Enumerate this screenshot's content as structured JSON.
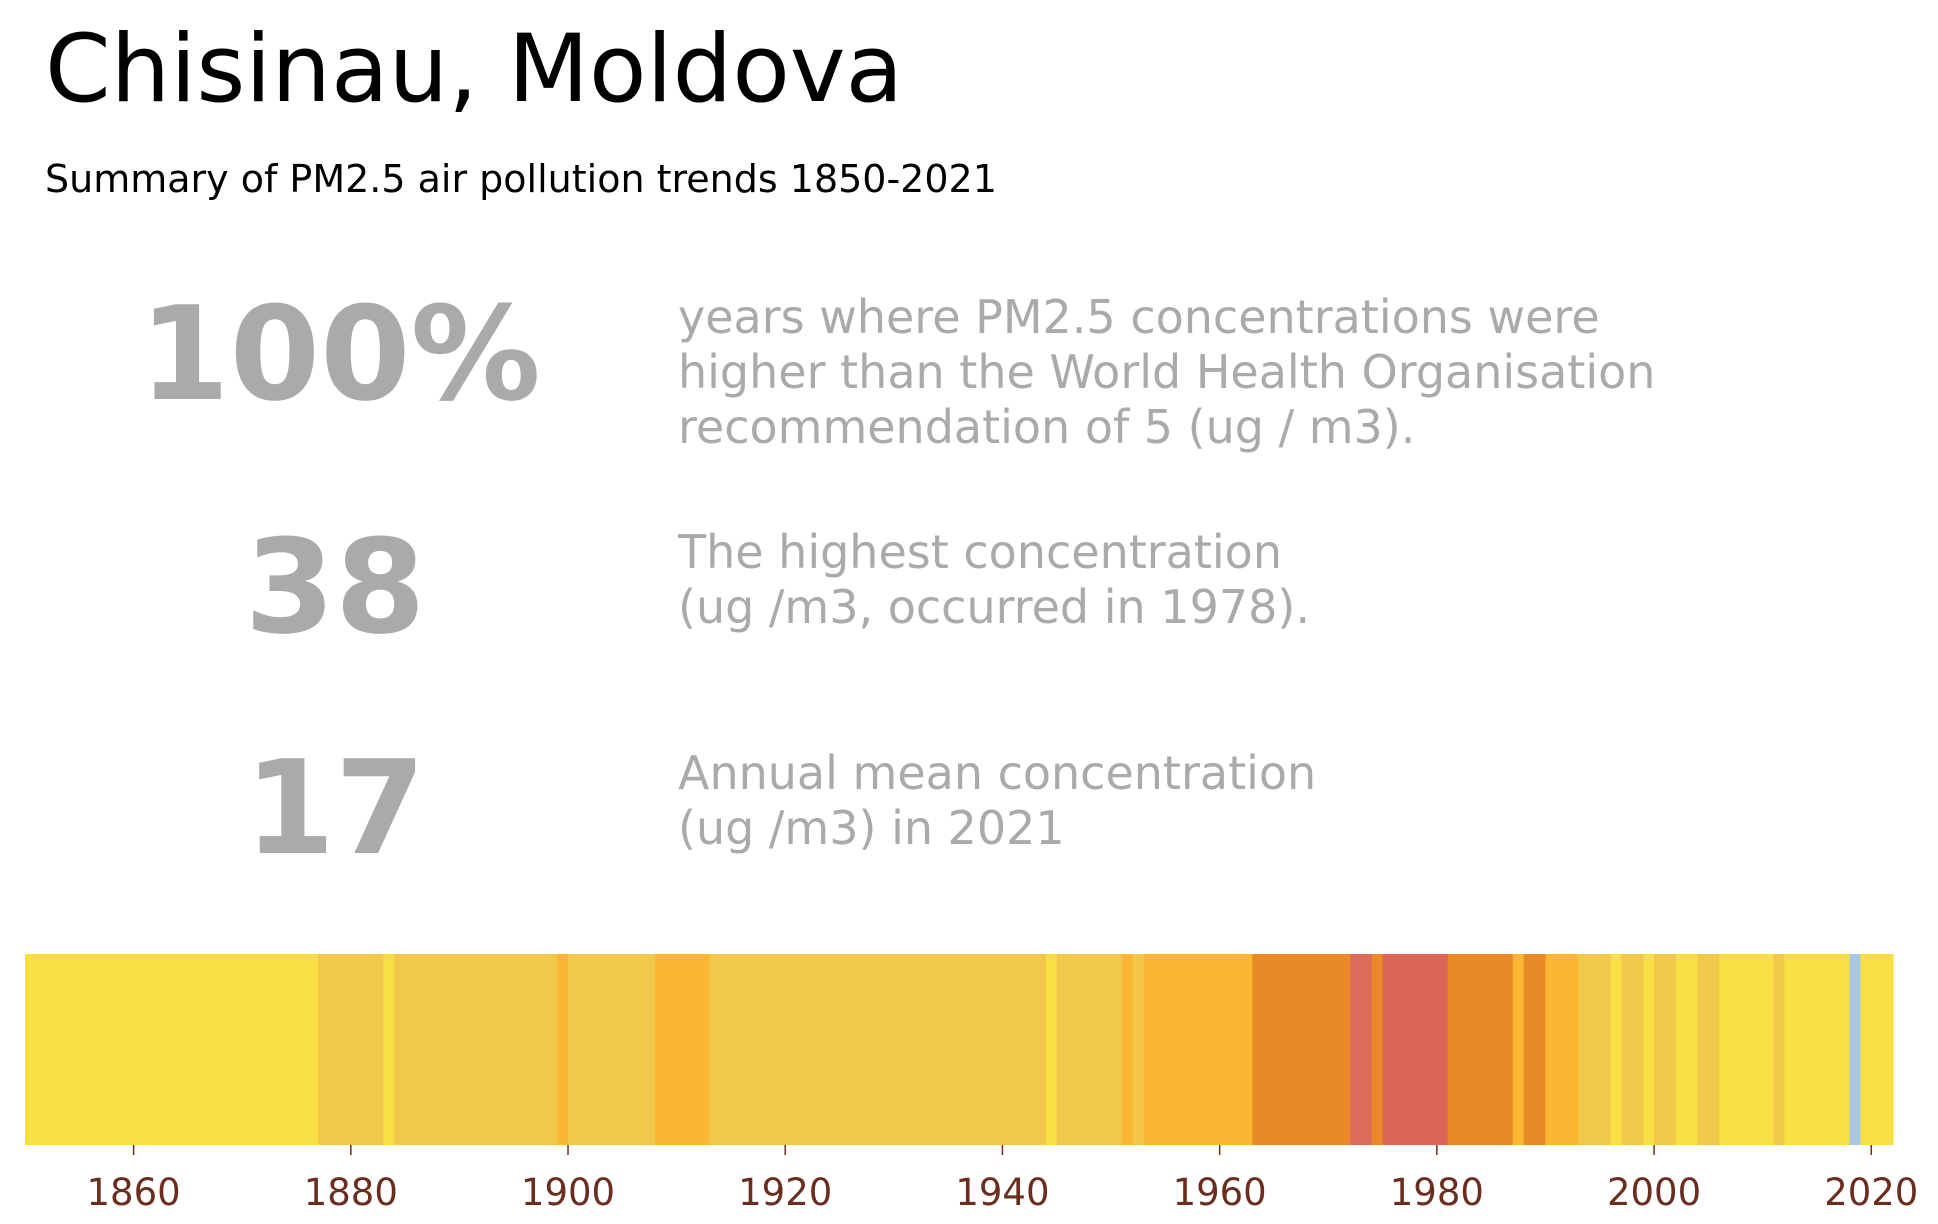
{
  "title": "Chisinau, Moldova",
  "subtitle": "Summary of PM2.5 air pollution trends 1850-2021",
  "stats": [
    {
      "value": "100%",
      "lines": [
        "years where PM2.5 concentrations were",
        "higher than the World Health Organisation",
        "recommendation of 5 (ug / m3)."
      ]
    },
    {
      "value": "38",
      "lines": [
        "The highest concentration",
        "(ug /m3, occurred in 1978)."
      ]
    },
    {
      "value": "17",
      "lines": [
        "Annual mean concentration",
        "(ug /m3) in 2021"
      ]
    }
  ],
  "colors": {
    "text_gray": "#aaaaaa",
    "tick_label": "#6b2d1e"
  },
  "chart_data": {
    "type": "heatmap",
    "xlim": [
      1850,
      2022
    ],
    "x_ticks": [
      1860,
      1880,
      1900,
      1920,
      1940,
      1960,
      1980,
      2000,
      2020
    ],
    "legend": "none",
    "grid": false,
    "segments": [
      {
        "start": 1850,
        "end": 1877,
        "color": "#f8df44"
      },
      {
        "start": 1877,
        "end": 1883,
        "color": "#f2c84b"
      },
      {
        "start": 1883,
        "end": 1884,
        "color": "#f8df44"
      },
      {
        "start": 1884,
        "end": 1899,
        "color": "#f2c84b"
      },
      {
        "start": 1899,
        "end": 1900,
        "color": "#fbb632"
      },
      {
        "start": 1900,
        "end": 1908,
        "color": "#f2c84b"
      },
      {
        "start": 1908,
        "end": 1913,
        "color": "#fbb632"
      },
      {
        "start": 1913,
        "end": 1944,
        "color": "#f2c84b"
      },
      {
        "start": 1944,
        "end": 1945,
        "color": "#f8df44"
      },
      {
        "start": 1945,
        "end": 1951,
        "color": "#f2c84b"
      },
      {
        "start": 1951,
        "end": 1952,
        "color": "#fbb632"
      },
      {
        "start": 1952,
        "end": 1953,
        "color": "#f2c84b"
      },
      {
        "start": 1953,
        "end": 1963,
        "color": "#fbb632"
      },
      {
        "start": 1963,
        "end": 1972,
        "color": "#e98927"
      },
      {
        "start": 1972,
        "end": 1974,
        "color": "#dd6b5a"
      },
      {
        "start": 1974,
        "end": 1975,
        "color": "#e98927"
      },
      {
        "start": 1975,
        "end": 1981,
        "color": "#dd6558"
      },
      {
        "start": 1981,
        "end": 1987,
        "color": "#e98927"
      },
      {
        "start": 1987,
        "end": 1988,
        "color": "#fbb632"
      },
      {
        "start": 1988,
        "end": 1990,
        "color": "#e98927"
      },
      {
        "start": 1990,
        "end": 1993,
        "color": "#fbb632"
      },
      {
        "start": 1993,
        "end": 1996,
        "color": "#f2c84b"
      },
      {
        "start": 1996,
        "end": 1997,
        "color": "#f8df44"
      },
      {
        "start": 1997,
        "end": 1999,
        "color": "#f2c84b"
      },
      {
        "start": 1999,
        "end": 2000,
        "color": "#f8df44"
      },
      {
        "start": 2000,
        "end": 2002,
        "color": "#f2c84b"
      },
      {
        "start": 2002,
        "end": 2004,
        "color": "#f8df44"
      },
      {
        "start": 2004,
        "end": 2006,
        "color": "#f2c84b"
      },
      {
        "start": 2006,
        "end": 2011,
        "color": "#f8df44"
      },
      {
        "start": 2011,
        "end": 2012,
        "color": "#f2c84b"
      },
      {
        "start": 2012,
        "end": 2018,
        "color": "#f8df44"
      },
      {
        "start": 2018,
        "end": 2019,
        "color": "#a8c8e8"
      },
      {
        "start": 2019,
        "end": 2022,
        "color": "#f8df44"
      }
    ]
  }
}
